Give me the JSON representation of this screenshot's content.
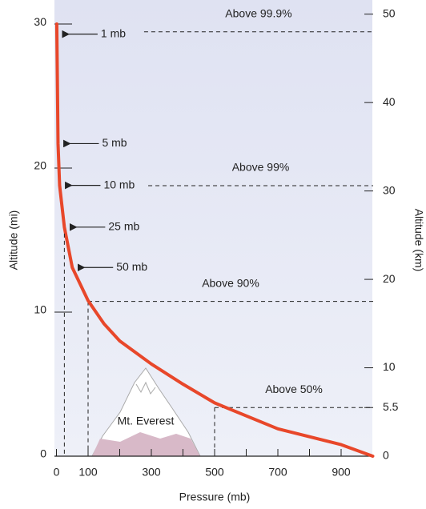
{
  "chart_data": {
    "type": "line",
    "xlabel": "Pressure (mb)",
    "ylabel": "Altitude (mi)",
    "y2label": "Altitude (km)",
    "x": [
      1,
      5,
      10,
      25,
      50,
      100,
      150,
      200,
      300,
      400,
      500,
      700,
      900,
      1000
    ],
    "values": [
      30,
      21.7,
      18.8,
      15.9,
      13.1,
      10.8,
      9.2,
      8.0,
      6.4,
      5.0,
      3.7,
      1.9,
      0.8,
      0
    ],
    "color": "#e8472a",
    "xlim": [
      0,
      1000
    ],
    "xticks": [
      0,
      100,
      300,
      500,
      700,
      900
    ],
    "xminor_ticks": [
      200,
      400,
      600,
      800
    ],
    "ylim": [
      0,
      31.67
    ],
    "yticks": [
      0,
      10,
      20,
      30
    ],
    "y2lim": [
      0,
      51.6
    ],
    "y2ticks": [
      0,
      5.5,
      10,
      20,
      30,
      40,
      50
    ],
    "pressure_labels": [
      {
        "text": "1 mb",
        "x": 1,
        "y": 29.3
      },
      {
        "text": "5 mb",
        "x": 5,
        "y": 21.7
      },
      {
        "text": "10 mb",
        "x": 10,
        "y": 18.8
      },
      {
        "text": "25 mb",
        "x": 25,
        "y": 15.9,
        "guide": true
      },
      {
        "text": "50 mb",
        "x": 50,
        "y": 13.1
      }
    ],
    "mass_lines": [
      {
        "text": "Above 99.9%",
        "y2": 48,
        "from": 277
      },
      {
        "text": "Above 99%",
        "y2": 30.6,
        "from": 290
      },
      {
        "text": "Above 90%",
        "y2": 17.5,
        "from": 100,
        "drop": true
      },
      {
        "text": "Above 50%",
        "y2": 5.5,
        "from": 500,
        "drop": true
      }
    ],
    "landmark": "Mt. Everest"
  }
}
